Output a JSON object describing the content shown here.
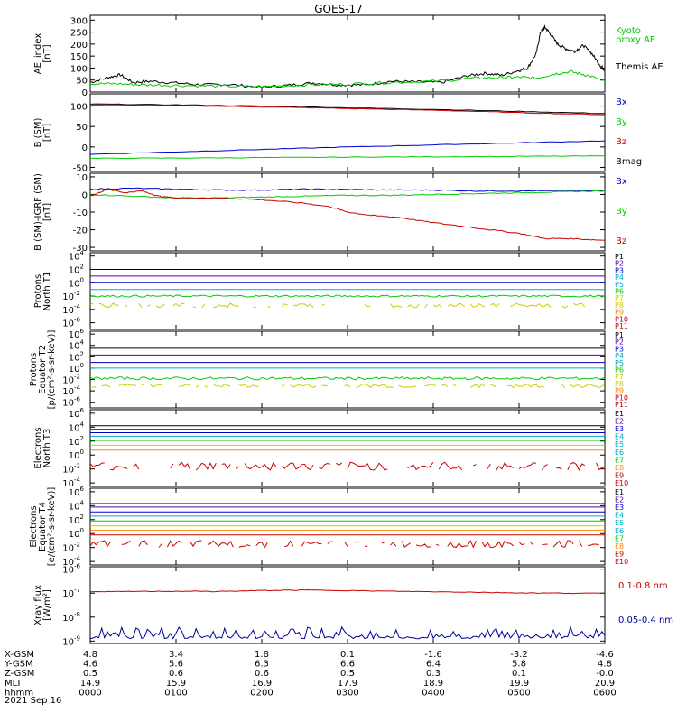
{
  "title": "GOES-17",
  "colors": {
    "black": "#000000",
    "green": "#00cc00",
    "blue": "#0000cc",
    "red": "#cc0000",
    "yellow": "#cccc00",
    "cyan": "#00aacc",
    "orange": "#ff8800",
    "purple": "#5500aa",
    "navy": "#000099"
  },
  "chart_data": [
    {
      "type": "line",
      "id": "ae",
      "ylabel": [
        "AE_index",
        "[nT]"
      ],
      "yticks": [
        "300",
        "250",
        "200",
        "150",
        "100",
        "50",
        "0"
      ],
      "ylim": [
        0,
        320
      ],
      "legend": [
        {
          "label": "Kyoto",
          "color": "green"
        },
        {
          "label": "proxy AE",
          "color": "green"
        },
        {
          "label": "Themis AE",
          "color": "black"
        }
      ],
      "series": [
        {
          "color": "black",
          "x": [
            0,
            0.2,
            0.35,
            0.5,
            0.7,
            1.0,
            1.3,
            1.6,
            2.0,
            2.3,
            2.6,
            2.9,
            3.2,
            3.5,
            3.8,
            4.1,
            4.4,
            4.6,
            4.8,
            5.0,
            5.1,
            5.2,
            5.25,
            5.3,
            5.35,
            5.45,
            5.55,
            5.65,
            5.75,
            5.85,
            5.95,
            6.0
          ],
          "y": [
            40,
            60,
            72,
            40,
            45,
            38,
            30,
            32,
            20,
            28,
            38,
            30,
            30,
            45,
            42,
            40,
            68,
            78,
            70,
            90,
            100,
            160,
            250,
            270,
            250,
            200,
            180,
            170,
            195,
            160,
            110,
            90
          ]
        },
        {
          "color": "green",
          "x": [
            0,
            0.3,
            0.6,
            1.0,
            1.5,
            2.0,
            2.5,
            3.0,
            3.5,
            4.0,
            4.5,
            4.8,
            5.0,
            5.2,
            5.4,
            5.6,
            5.8,
            6.0
          ],
          "y": [
            35,
            35,
            30,
            28,
            25,
            22,
            30,
            33,
            40,
            45,
            58,
            60,
            62,
            58,
            75,
            85,
            70,
            45
          ]
        }
      ]
    },
    {
      "type": "line",
      "id": "bsm",
      "ylabel": [
        "B (SM)",
        "[nT]"
      ],
      "yticks": [
        "100",
        "50",
        "0",
        "-50"
      ],
      "ylim": [
        -60,
        130
      ],
      "legend": [
        {
          "label": "Bx",
          "color": "blue"
        },
        {
          "label": "By",
          "color": "green"
        },
        {
          "label": "Bz",
          "color": "red"
        },
        {
          "label": "Bmag",
          "color": "black"
        }
      ],
      "series": [
        {
          "color": "black",
          "x": [
            0,
            1,
            2,
            3,
            4,
            5,
            6
          ],
          "y": [
            105,
            103,
            100,
            96,
            92,
            87,
            82
          ]
        },
        {
          "color": "red",
          "x": [
            0,
            1,
            2,
            3,
            4,
            5,
            6
          ],
          "y": [
            103,
            101,
            98,
            94,
            90,
            84,
            79
          ]
        },
        {
          "color": "blue",
          "x": [
            0,
            1,
            2,
            3,
            4,
            5,
            6
          ],
          "y": [
            -18,
            -12,
            -6,
            0,
            5,
            10,
            15
          ]
        },
        {
          "color": "green",
          "x": [
            0,
            1,
            2,
            3,
            4,
            5,
            6
          ],
          "y": [
            -28,
            -27,
            -26,
            -25,
            -24,
            -23,
            -22
          ]
        }
      ]
    },
    {
      "type": "line",
      "id": "bigrf",
      "ylabel": [
        "B (SM)-IGRF (SM)",
        "[nT]"
      ],
      "yticks": [
        "10",
        "0",
        "-10",
        "-20",
        "-30"
      ],
      "ylim": [
        -32,
        12
      ],
      "legend": [
        {
          "label": "Bx",
          "color": "blue"
        },
        {
          "label": "By",
          "color": "green"
        },
        {
          "label": "Bz",
          "color": "red"
        }
      ],
      "series": [
        {
          "color": "blue",
          "x": [
            0,
            0.5,
            1,
            1.5,
            2,
            2.5,
            3,
            3.5,
            4,
            4.5,
            5,
            5.5,
            6
          ],
          "y": [
            3,
            3.5,
            3,
            2.5,
            2.5,
            3,
            2.8,
            2.5,
            2.5,
            2,
            2,
            2,
            2
          ]
        },
        {
          "color": "green",
          "x": [
            0,
            0.5,
            1,
            1.5,
            2,
            2.5,
            3,
            3.5,
            4,
            4.5,
            5,
            5.5,
            6
          ],
          "y": [
            0,
            -1,
            -2,
            -2,
            -1.5,
            -1,
            -0.5,
            -0.5,
            0,
            0.5,
            1,
            1.5,
            2
          ]
        },
        {
          "color": "red",
          "x": [
            0,
            0.2,
            0.4,
            0.6,
            0.8,
            1.0,
            1.5,
            2.0,
            2.5,
            2.8,
            3.0,
            3.3,
            3.6,
            4.0,
            4.5,
            5.0,
            5.3,
            5.6,
            6.0
          ],
          "y": [
            -1,
            3,
            1,
            2,
            -1,
            -2,
            -2,
            -3,
            -5,
            -7,
            -10,
            -12,
            -13,
            -16,
            -19,
            -22,
            -25,
            -25,
            -26
          ]
        }
      ]
    },
    {
      "type": "line",
      "id": "protons-t1",
      "log": true,
      "ylabel": [
        "Protons",
        "North T1"
      ],
      "yticks": [
        {
          "m": "10",
          "e": "4"
        },
        {
          "m": "10",
          "e": "2"
        },
        {
          "m": "10",
          "e": "0"
        },
        {
          "m": "10",
          "e": "-2"
        },
        {
          "m": "10",
          "e": "-4"
        },
        {
          "m": "10",
          "e": "-6"
        }
      ],
      "ylim": [
        -7,
        4.5
      ],
      "legend": [
        {
          "label": "P1",
          "color": "black"
        },
        {
          "label": "P2",
          "color": "purple"
        },
        {
          "label": "P3",
          "color": "blue"
        },
        {
          "label": "P4",
          "color": "cyan"
        },
        {
          "label": "P5",
          "color": "cyan"
        },
        {
          "label": "P6",
          "color": "green"
        },
        {
          "label": "P7",
          "color": "yellow"
        },
        {
          "label": "P8",
          "color": "yellow"
        },
        {
          "label": "P9",
          "color": "orange"
        },
        {
          "label": "P10",
          "color": "red"
        },
        {
          "label": "P11",
          "color": "red"
        }
      ],
      "series": [
        {
          "color": "black",
          "level": 2.0
        },
        {
          "color": "purple",
          "level": 1.0
        },
        {
          "color": "blue",
          "level": 0.0
        },
        {
          "color": "cyan",
          "level": -1.0
        },
        {
          "color": "green",
          "level": -2.0,
          "noise": 0.15
        },
        {
          "color": "yellow",
          "level": -3.4,
          "noise": 0.35,
          "gaps": true
        }
      ]
    },
    {
      "type": "line",
      "id": "protons-t2",
      "log": true,
      "ylabel": [
        "Protons",
        "Equator T2",
        "[p/(cm²-s-sr-keV)]"
      ],
      "yticks": [
        {
          "m": "10",
          "e": "6"
        },
        {
          "m": "10",
          "e": "4"
        },
        {
          "m": "10",
          "e": "2"
        },
        {
          "m": "10",
          "e": "0"
        },
        {
          "m": "10",
          "e": "-2"
        },
        {
          "m": "10",
          "e": "-4"
        },
        {
          "m": "10",
          "e": "-6"
        }
      ],
      "ylim": [
        -7,
        6.5
      ],
      "legend": [
        {
          "label": "P1",
          "color": "black"
        },
        {
          "label": "P2",
          "color": "purple"
        },
        {
          "label": "P3",
          "color": "blue"
        },
        {
          "label": "P4",
          "color": "cyan"
        },
        {
          "label": "P5",
          "color": "cyan"
        },
        {
          "label": "P6",
          "color": "green"
        },
        {
          "label": "P7",
          "color": "yellow"
        },
        {
          "label": "P8",
          "color": "yellow"
        },
        {
          "label": "P9",
          "color": "orange"
        },
        {
          "label": "P10",
          "color": "red"
        },
        {
          "label": "P11",
          "color": "red"
        }
      ],
      "series": [
        {
          "color": "black",
          "level": 3.5
        },
        {
          "color": "purple",
          "level": 2.3
        },
        {
          "color": "blue",
          "level": 1.0
        },
        {
          "color": "cyan",
          "level": 0.0
        },
        {
          "color": "green",
          "level": -1.8,
          "noise": 0.25
        },
        {
          "color": "yellow",
          "level": -3.1,
          "noise": 0.35,
          "gaps": true
        }
      ]
    },
    {
      "type": "line",
      "id": "electrons-t3",
      "log": true,
      "ylabel": [
        "Electrons",
        "North T3"
      ],
      "yticks": [
        {
          "m": "10",
          "e": "6"
        },
        {
          "m": "10",
          "e": "4"
        },
        {
          "m": "10",
          "e": "2"
        },
        {
          "m": "10",
          "e": "0"
        },
        {
          "m": "10",
          "e": "-2"
        },
        {
          "m": "10",
          "e": "-4"
        }
      ],
      "ylim": [
        -4.5,
        6.5
      ],
      "legend": [
        {
          "label": "E1",
          "color": "black"
        },
        {
          "label": "E2",
          "color": "purple"
        },
        {
          "label": "E3",
          "color": "blue"
        },
        {
          "label": "E4",
          "color": "cyan"
        },
        {
          "label": "E5",
          "color": "cyan"
        },
        {
          "label": "E6",
          "color": "cyan"
        },
        {
          "label": "E7",
          "color": "green"
        },
        {
          "label": "E8",
          "color": "orange"
        },
        {
          "label": "E9",
          "color": "red"
        },
        {
          "label": "E10",
          "color": "red"
        }
      ],
      "series": [
        {
          "color": "black",
          "level": 4.2
        },
        {
          "color": "purple",
          "level": 3.7
        },
        {
          "color": "blue",
          "level": 3.2
        },
        {
          "color": "cyan",
          "level": 2.7
        },
        {
          "color": "green",
          "level": 2.1
        },
        {
          "color": "yellow",
          "level": 1.4
        },
        {
          "color": "orange",
          "level": 0.7
        },
        {
          "color": "red",
          "level": -1.6,
          "noise": 0.6,
          "gaps": true
        }
      ]
    },
    {
      "type": "line",
      "id": "electrons-t4",
      "log": true,
      "ylabel": [
        "Electrons",
        "Equator T4",
        "[e/(cm²-s-sr-keV)]"
      ],
      "yticks": [
        {
          "m": "10",
          "e": "6"
        },
        {
          "m": "10",
          "e": "4"
        },
        {
          "m": "10",
          "e": "2"
        },
        {
          "m": "10",
          "e": "0"
        },
        {
          "m": "10",
          "e": "-2"
        },
        {
          "m": "10",
          "e": "-4"
        }
      ],
      "ylim": [
        -4.5,
        6.5
      ],
      "legend": [
        {
          "label": "E1",
          "color": "black"
        },
        {
          "label": "E2",
          "color": "purple"
        },
        {
          "label": "E3",
          "color": "blue"
        },
        {
          "label": "E4",
          "color": "cyan"
        },
        {
          "label": "E5",
          "color": "cyan"
        },
        {
          "label": "E6",
          "color": "cyan"
        },
        {
          "label": "E7",
          "color": "green"
        },
        {
          "label": "E8",
          "color": "orange"
        },
        {
          "label": "E9",
          "color": "red"
        },
        {
          "label": "E10",
          "color": "red"
        }
      ],
      "series": [
        {
          "color": "black",
          "level": 4.3
        },
        {
          "color": "purple",
          "level": 3.8
        },
        {
          "color": "blue",
          "level": 3.1
        },
        {
          "color": "cyan",
          "level": 2.5
        },
        {
          "color": "green",
          "level": 1.8
        },
        {
          "color": "yellow",
          "level": 1.1
        },
        {
          "color": "orange",
          "level": 0.5
        },
        {
          "color": "red",
          "level": -0.2
        },
        {
          "color": "red",
          "level": -1.5,
          "noise": 0.5,
          "gaps": true
        }
      ]
    },
    {
      "type": "line",
      "id": "xray",
      "log": true,
      "ylabel": [
        "Xray flux",
        "[W/m²]"
      ],
      "yticks": [
        {
          "m": "10",
          "e": "-6"
        },
        {
          "m": "10",
          "e": "-7"
        },
        {
          "m": "10",
          "e": "-8"
        },
        {
          "m": "10",
          "e": "-9"
        }
      ],
      "ylim": [
        -9.1,
        -5.9
      ],
      "legend": [
        {
          "label": "0.1-0.8 nm",
          "color": "red"
        },
        {
          "label": "0.05-0.4 nm",
          "color": "navy"
        }
      ],
      "series": [
        {
          "color": "red",
          "x": [
            0,
            0.5,
            1,
            1.5,
            2,
            2.5,
            3,
            3.5,
            4,
            4.5,
            5,
            5.5,
            6
          ],
          "y": [
            -6.95,
            -6.93,
            -6.92,
            -6.93,
            -6.89,
            -6.87,
            -6.89,
            -6.92,
            -6.94,
            -6.96,
            -6.99,
            -7.0,
            -7.01
          ]
        },
        {
          "color": "navy",
          "level": -8.9,
          "noise": 0.35
        }
      ]
    }
  ],
  "footer": {
    "rows": [
      {
        "label": "X-GSM",
        "values": [
          "4.8",
          "3.4",
          "1.8",
          "0.1",
          "-1.6",
          "-3.2",
          "-4.6"
        ]
      },
      {
        "label": "Y-GSM",
        "values": [
          "4.6",
          "5.6",
          "6.3",
          "6.6",
          "6.4",
          "5.8",
          "4.8"
        ]
      },
      {
        "label": "Z-GSM",
        "values": [
          "0.5",
          "0.6",
          "0.6",
          "0.5",
          "0.3",
          "0.1",
          "-0.0"
        ]
      },
      {
        "label": "MLT",
        "values": [
          "14.9",
          "15.9",
          "16.9",
          "17.9",
          "18.9",
          "19.9",
          "20.9"
        ]
      },
      {
        "label": "hhmm",
        "values": [
          "0000",
          "0100",
          "0200",
          "0300",
          "0400",
          "0500",
          "0600"
        ]
      }
    ],
    "date": "2021 Sep 16"
  }
}
